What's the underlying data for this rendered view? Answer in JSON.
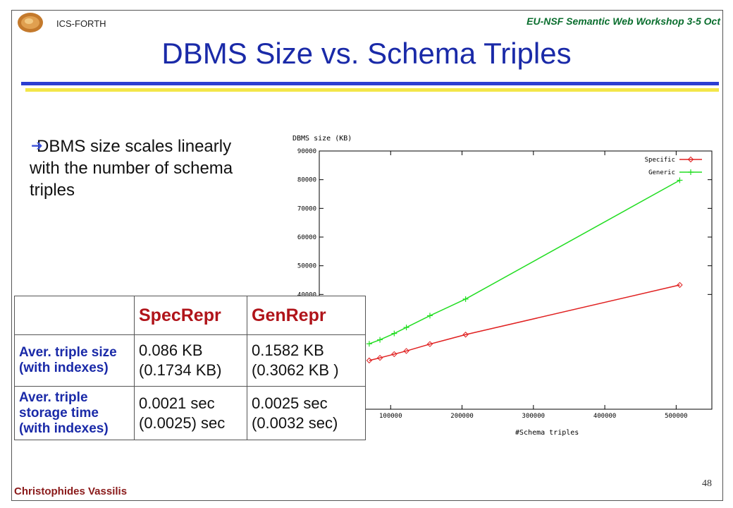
{
  "header": {
    "org": "ICS-FORTH",
    "workshop": "EU-NSF Semantic Web Workshop 3-5 Oct",
    "title": "DBMS Size vs. Schema Triples"
  },
  "bullet": {
    "text": "DBMS size scales linearly with the number of  schema triples"
  },
  "table": {
    "columns": [
      "",
      "SpecRepr",
      "GenRepr"
    ],
    "rows": [
      {
        "label": "Aver. triple size (with indexes)",
        "spec": "0.086  KB (0.1734 KB)",
        "gen": "0.1582 KB (0.3062 KB )"
      },
      {
        "label": "Aver. triple storage time (with indexes)",
        "spec": "0.0021 sec  (0.0025) sec",
        "gen": "0.0025 sec (0.0032 sec)"
      }
    ]
  },
  "footer": {
    "author": "Christophides Vassilis",
    "page": "48"
  },
  "colors": {
    "title": "#1a2aa8",
    "specific": "#e02020",
    "generic": "#22dd22",
    "author": "#8a1a1a",
    "workshop": "#0a6e2e"
  },
  "chart_data": {
    "type": "line",
    "ylabel": "DBMS size (KB)",
    "xlabel": "#Schema triples",
    "xlim": [
      0,
      550000
    ],
    "ylim": [
      0,
      90000
    ],
    "xticks": [
      "100000",
      "200000",
      "300000",
      "400000",
      "500000"
    ],
    "yticks": [
      "40000",
      "50000",
      "60000",
      "70000",
      "80000",
      "90000"
    ],
    "legend_position": "top-right",
    "series": [
      {
        "name": "Specific",
        "marker": "diamond",
        "color": "#e02020",
        "x": [
          70000,
          85000,
          105000,
          122000,
          155000,
          205000,
          505000
        ],
        "y": [
          17000,
          17900,
          19200,
          20300,
          22700,
          26000,
          43300
        ]
      },
      {
        "name": "Generic",
        "marker": "plus",
        "color": "#22dd22",
        "x": [
          70000,
          85000,
          105000,
          122000,
          155000,
          205000,
          505000
        ],
        "y": [
          22800,
          24200,
          26400,
          28500,
          32600,
          38400,
          79800
        ]
      }
    ]
  }
}
